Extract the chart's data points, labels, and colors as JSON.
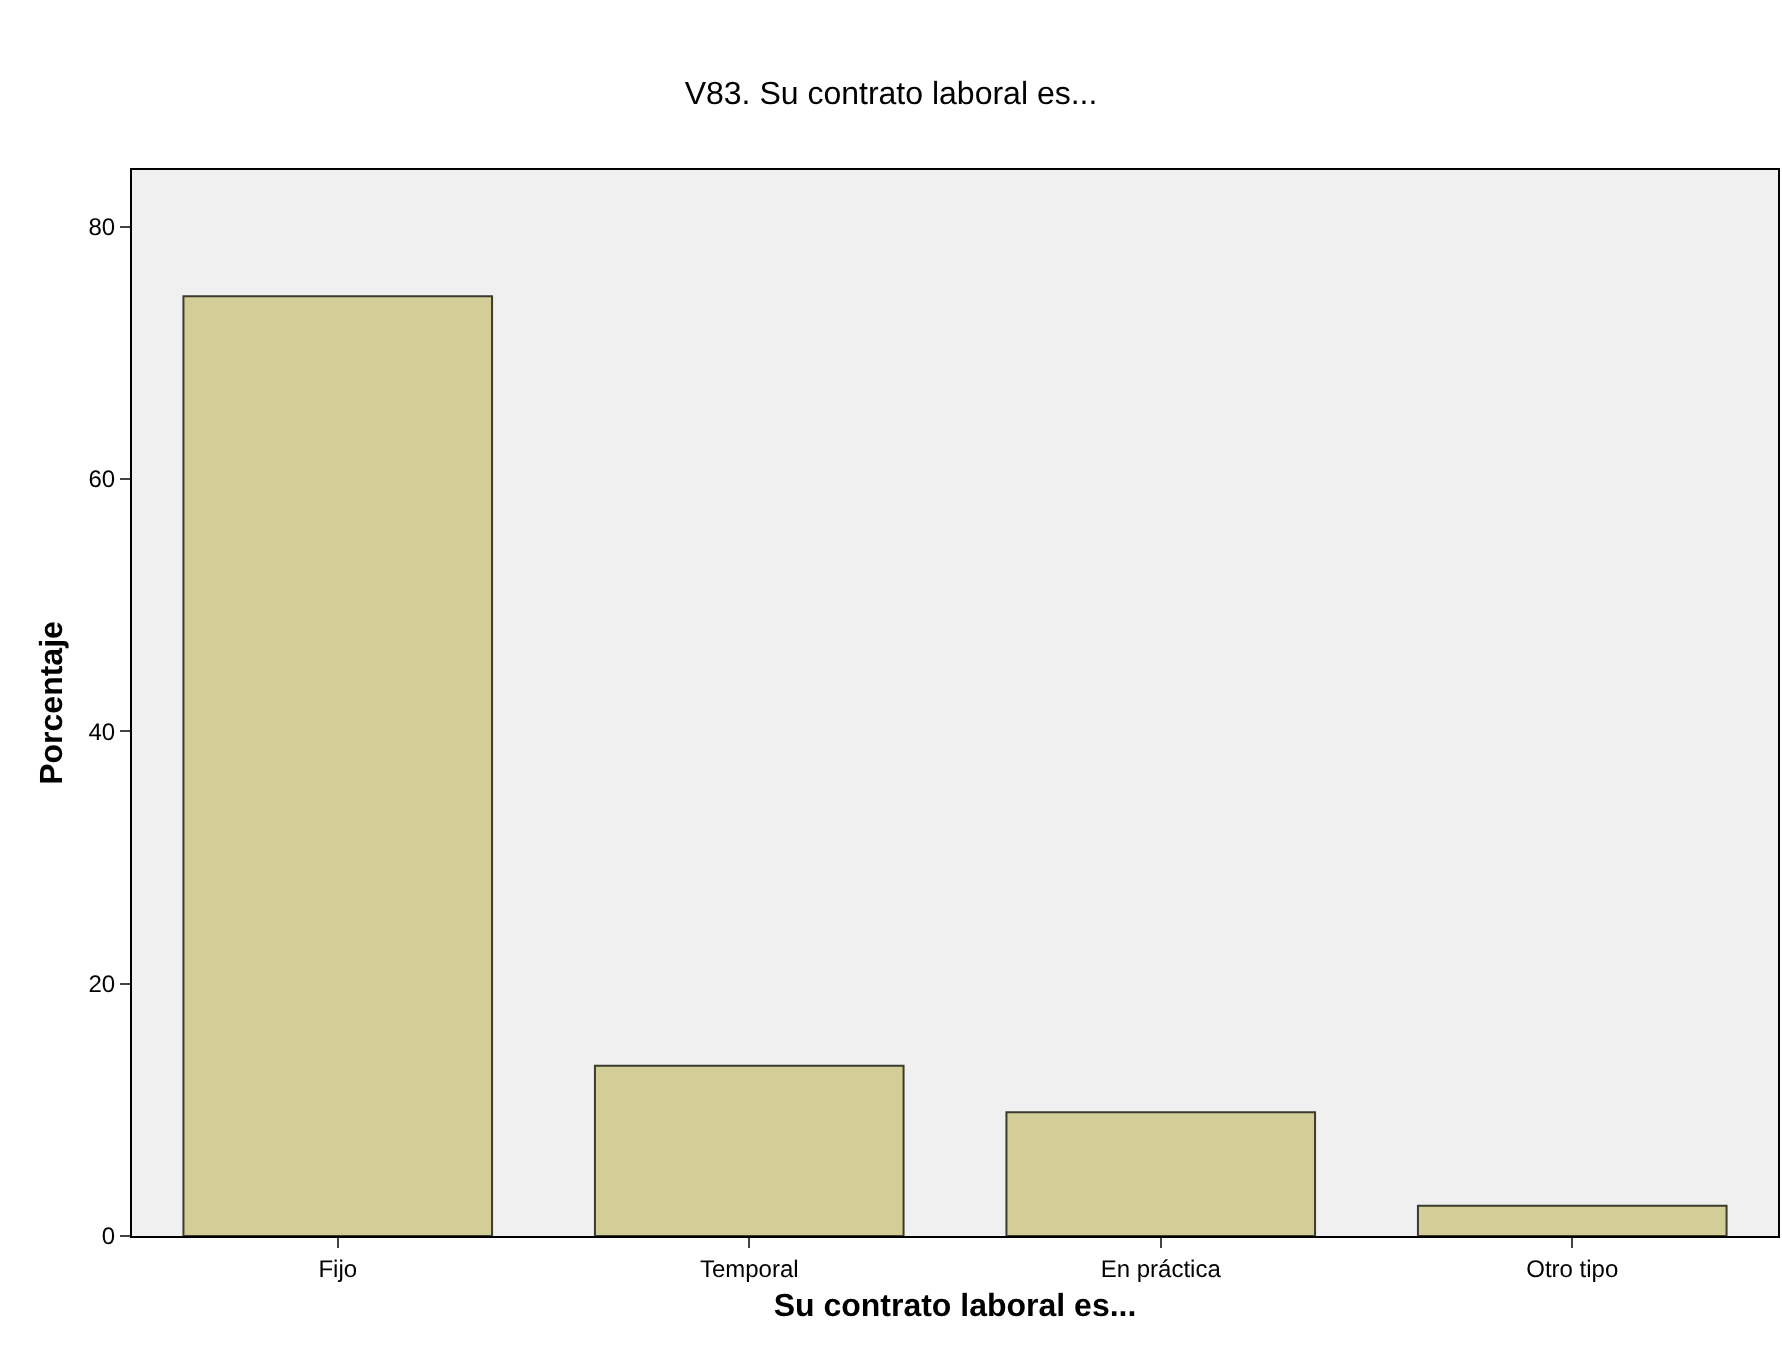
{
  "chart_data": {
    "type": "bar",
    "title": "V83. Su contrato laboral es...",
    "xlabel": "Su contrato laboral es...",
    "ylabel": "Porcentaje",
    "categories": [
      "Fijo",
      "Temporal",
      "En práctica",
      "Otro tipo"
    ],
    "values": [
      74.5,
      13.5,
      9.8,
      2.4
    ],
    "color": "#d3ce97",
    "ylim": [
      0,
      84.5
    ],
    "yticks": [
      0,
      20,
      40,
      60,
      80
    ],
    "grid": false
  }
}
